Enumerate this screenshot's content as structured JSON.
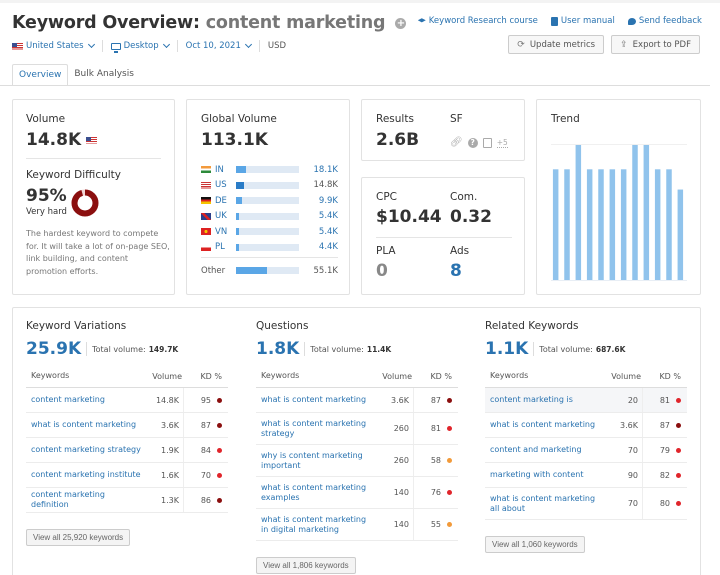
{
  "header": {
    "title_prefix": "Keyword Overview:",
    "keyword": "content marketing",
    "filters": {
      "country": "United States",
      "device": "Desktop",
      "date": "Oct 10, 2021",
      "currency": "USD"
    },
    "links": {
      "course": "Keyword Research course",
      "manual": "User manual",
      "feedback": "Send feedback"
    },
    "buttons": {
      "update": "Update metrics",
      "export": "Export to PDF"
    },
    "tabs": [
      {
        "label": "Overview",
        "active": true
      },
      {
        "label": "Bulk Analysis",
        "active": false
      }
    ]
  },
  "volume": {
    "label": "Volume",
    "value": "14.8K"
  },
  "keyword_difficulty": {
    "label": "Keyword Difficulty",
    "value": "95%",
    "percent": 95,
    "status": "Very hard",
    "color": "#8b0f0f",
    "description": "The hardest keyword to compete for. It will take a lot of on-page SEO, link building, and content promotion efforts."
  },
  "global_volume": {
    "label": "Global Volume",
    "value": "113.1K",
    "countries": [
      {
        "code": "IN",
        "value": "18.1K",
        "share": 0.16
      },
      {
        "code": "US",
        "value": "14.8K",
        "share": 0.13,
        "highlight": true
      },
      {
        "code": "DE",
        "value": "9.9K",
        "share": 0.09
      },
      {
        "code": "UK",
        "value": "5.4K",
        "share": 0.05
      },
      {
        "code": "VN",
        "value": "5.4K",
        "share": 0.05
      },
      {
        "code": "PL",
        "value": "4.4K",
        "share": 0.04
      }
    ],
    "other": {
      "label": "Other",
      "value": "55.1K",
      "share": 0.49
    }
  },
  "results": {
    "label": "Results",
    "value": "2.6B",
    "sf_label": "SF",
    "sf_more": "+5"
  },
  "metrics": {
    "cpc_label": "CPC",
    "cpc": "$10.44",
    "com_label": "Com.",
    "com": "0.32",
    "pla_label": "PLA",
    "pla": "0",
    "ads_label": "Ads",
    "ads": "8"
  },
  "trend": {
    "label": "Trend",
    "values": [
      0.82,
      0.82,
      1.0,
      0.82,
      0.82,
      0.82,
      0.82,
      1.0,
      1.0,
      0.82,
      0.82,
      0.67
    ],
    "color": "#90c3ec"
  },
  "columns": {
    "keyword": "Keywords",
    "volume": "Volume",
    "kd": "KD %"
  },
  "sections": [
    {
      "title": "Keyword Variations",
      "count": "25.9K",
      "total_label": "Total volume:",
      "total": "149.7K",
      "rows": [
        {
          "keyword": "content marketing",
          "volume": "14.8K",
          "kd": "95",
          "kd_color": "#8b0f0f"
        },
        {
          "keyword": "what is content marketing",
          "volume": "3.6K",
          "kd": "87",
          "kd_color": "#8b0f0f"
        },
        {
          "keyword": "content marketing strategy",
          "volume": "1.9K",
          "kd": "84",
          "kd_color": "#e0252b"
        },
        {
          "keyword": "content marketing institute",
          "volume": "1.6K",
          "kd": "70",
          "kd_color": "#e0252b"
        },
        {
          "keyword": "content marketing definition",
          "volume": "1.3K",
          "kd": "86",
          "kd_color": "#8b0f0f"
        }
      ],
      "view_all": "View all 25,920 keywords"
    },
    {
      "title": "Questions",
      "count": "1.8K",
      "total_label": "Total volume:",
      "total": "11.4K",
      "rows": [
        {
          "keyword": "what is content marketing",
          "volume": "3.6K",
          "kd": "87",
          "kd_color": "#8b0f0f"
        },
        {
          "keyword": "what is content marketing strategy",
          "volume": "260",
          "kd": "81",
          "kd_color": "#e0252b"
        },
        {
          "keyword": "why is content marketing important",
          "volume": "260",
          "kd": "58",
          "kd_color": "#f29a3a"
        },
        {
          "keyword": "what is content marketing examples",
          "volume": "140",
          "kd": "76",
          "kd_color": "#e0252b"
        },
        {
          "keyword": "what is content marketing in digital marketing",
          "volume": "140",
          "kd": "55",
          "kd_color": "#f29a3a"
        }
      ],
      "view_all": "View all 1,806 keywords"
    },
    {
      "title": "Related Keywords",
      "count": "1.1K",
      "total_label": "Total volume:",
      "total": "687.6K",
      "rows": [
        {
          "keyword": "content marketing is",
          "volume": "20",
          "kd": "81",
          "kd_color": "#e0252b"
        },
        {
          "keyword": "what is content marketing",
          "volume": "3.6K",
          "kd": "87",
          "kd_color": "#8b0f0f"
        },
        {
          "keyword": "content and marketing",
          "volume": "70",
          "kd": "79",
          "kd_color": "#e0252b"
        },
        {
          "keyword": "marketing with content",
          "volume": "90",
          "kd": "82",
          "kd_color": "#e0252b"
        },
        {
          "keyword": "what is content marketing all about",
          "volume": "70",
          "kd": "80",
          "kd_color": "#e0252b"
        }
      ],
      "view_all": "View all 1,060 keywords"
    }
  ]
}
